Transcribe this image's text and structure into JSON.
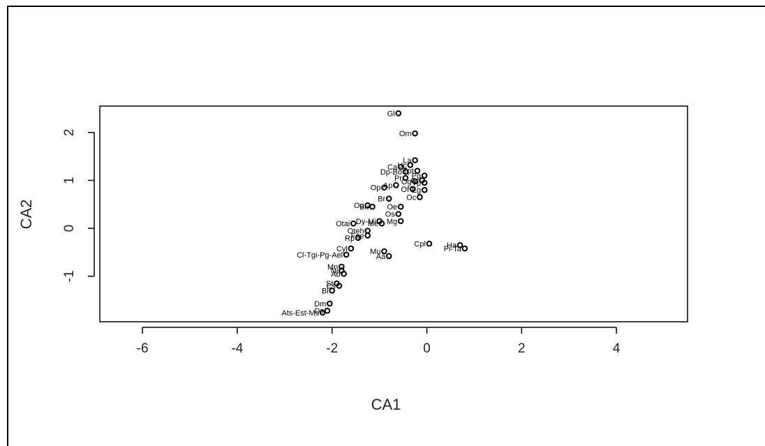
{
  "chart_data": {
    "type": "scatter",
    "xlabel": "CA1",
    "ylabel": "CA2",
    "xticks": [
      "-6",
      "-4",
      "-2",
      "0",
      "2",
      "4"
    ],
    "yticks": [
      "-1",
      "0",
      "1",
      "2"
    ],
    "xlim": [
      -6.9,
      5.5
    ],
    "ylim": [
      -1.95,
      2.55
    ],
    "grid": false,
    "points": [
      {
        "label": "Gl",
        "x": -0.6,
        "y": 2.4
      },
      {
        "label": "Om",
        "x": -0.25,
        "y": 1.98
      },
      {
        "label": "La",
        "x": -0.25,
        "y": 1.42
      },
      {
        "label": "Ca",
        "x": -0.55,
        "y": 1.28
      },
      {
        "label": "Uc",
        "x": -0.35,
        "y": 1.32
      },
      {
        "label": "Tpt",
        "x": -0.2,
        "y": 1.2
      },
      {
        "label": "Dp-Bo",
        "x": -0.45,
        "y": 1.18
      },
      {
        "label": "Pr",
        "x": -0.45,
        "y": 1.05
      },
      {
        "label": "Pg",
        "x": -0.05,
        "y": 1.1
      },
      {
        "label": "Og",
        "x": -0.25,
        "y": 0.98
      },
      {
        "label": "Gt",
        "x": -0.1,
        "y": 1.0
      },
      {
        "label": "Tp",
        "x": -0.05,
        "y": 0.95
      },
      {
        "label": "Ap",
        "x": -0.65,
        "y": 0.9
      },
      {
        "label": "Op",
        "x": -0.9,
        "y": 0.85
      },
      {
        "label": "Eg",
        "x": -0.05,
        "y": 0.8
      },
      {
        "label": "Of",
        "x": -0.3,
        "y": 0.82
      },
      {
        "label": "Br",
        "x": -0.8,
        "y": 0.62
      },
      {
        "label": "Oc",
        "x": -0.15,
        "y": 0.65
      },
      {
        "label": "Ou",
        "x": -1.25,
        "y": 0.48
      },
      {
        "label": "Bu",
        "x": -1.15,
        "y": 0.45
      },
      {
        "label": "Oe",
        "x": -0.55,
        "y": 0.45
      },
      {
        "label": "Os",
        "x": -0.6,
        "y": 0.3
      },
      {
        "label": "Dy-Mi",
        "x": -1.0,
        "y": 0.15
      },
      {
        "label": "Otai",
        "x": -1.55,
        "y": 0.1
      },
      {
        "label": "Me",
        "x": -0.95,
        "y": 0.1
      },
      {
        "label": "Mg",
        "x": -0.55,
        "y": 0.15
      },
      {
        "label": "Oteh",
        "x": -1.25,
        "y": -0.05
      },
      {
        "label": "Rp",
        "x": -1.45,
        "y": -0.2
      },
      {
        "label": "Fge",
        "x": -1.25,
        "y": -0.15
      },
      {
        "label": "Cyl",
        "x": -1.6,
        "y": -0.42
      },
      {
        "label": "Cl-Tgi-Pg-Ael",
        "x": -1.7,
        "y": -0.55
      },
      {
        "label": "Mu",
        "x": -0.9,
        "y": -0.48
      },
      {
        "label": "Aa",
        "x": -0.8,
        "y": -0.58
      },
      {
        "label": "Cpl",
        "x": 0.05,
        "y": -0.32
      },
      {
        "label": "Ha",
        "x": 0.7,
        "y": -0.35
      },
      {
        "label": "Pi-Ta",
        "x": 0.8,
        "y": -0.42
      },
      {
        "label": "Mn",
        "x": -1.8,
        "y": -0.8
      },
      {
        "label": "Ni",
        "x": -1.8,
        "y": -0.88
      },
      {
        "label": "Ab",
        "x": -1.75,
        "y": -0.95
      },
      {
        "label": "St",
        "x": -1.9,
        "y": -1.15
      },
      {
        "label": "Cs",
        "x": -1.85,
        "y": -1.2
      },
      {
        "label": "Bl",
        "x": -2.0,
        "y": -1.3
      },
      {
        "label": "Dm",
        "x": -2.05,
        "y": -1.57
      },
      {
        "label": "Ds",
        "x": -2.1,
        "y": -1.72
      },
      {
        "label": "Ats-Est-Ms",
        "x": -2.2,
        "y": -1.76
      }
    ]
  }
}
